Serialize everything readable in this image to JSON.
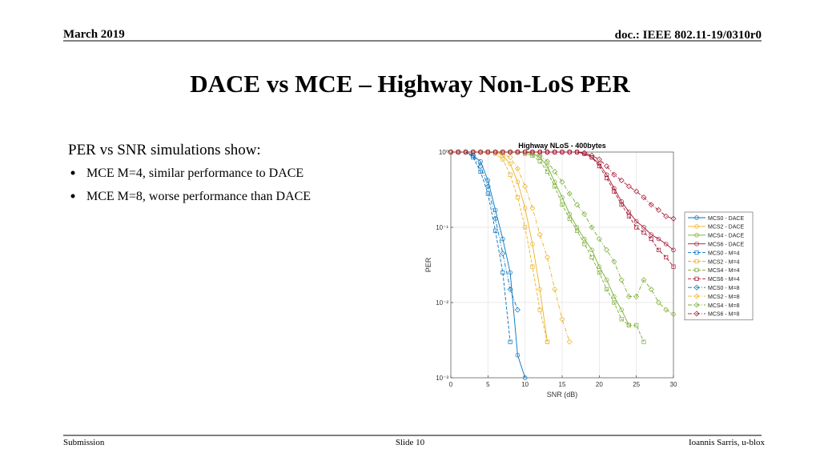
{
  "header": {
    "date": "March 2019",
    "doc": "doc.: IEEE 802.11-19/0310r0"
  },
  "title": "DACE vs MCE – Highway Non-LoS PER",
  "body": {
    "intro": "PER vs SNR simulations show:",
    "bullets": [
      "MCE M=4, similar performance to DACE",
      "MCE M=8, worse performance than DACE"
    ]
  },
  "chart_data": {
    "type": "line",
    "title": "Highway NLoS - 400bytes",
    "xlabel": "SNR (dB)",
    "ylabel": "PER",
    "x": [
      0,
      1,
      2,
      3,
      4,
      5,
      6,
      7,
      8,
      9,
      10,
      11,
      12,
      13,
      14,
      15,
      16,
      17,
      18,
      19,
      20,
      21,
      22,
      23,
      24,
      25,
      26,
      27,
      28,
      29,
      30
    ],
    "xlim": [
      0,
      30
    ],
    "xticks": [
      0,
      5,
      10,
      15,
      20,
      25,
      30
    ],
    "ylim": [
      0.001,
      1
    ],
    "yscale": "log",
    "yticks": [
      {
        "value": 0.001,
        "label": "10⁻³"
      },
      {
        "value": 0.01,
        "label": "10⁻²"
      },
      {
        "value": 0.1,
        "label": "10⁻¹"
      },
      {
        "value": 1,
        "label": "10⁰"
      }
    ],
    "grid": true,
    "legend": "right",
    "series": [
      {
        "name": "MCS0 - DACE",
        "color": "#0072bd",
        "dash": "solid",
        "marker": "circle",
        "values": [
          1,
          1,
          1,
          0.9,
          0.75,
          0.42,
          0.17,
          0.07,
          0.025,
          0.002,
          0.001,
          null,
          null,
          null,
          null,
          null,
          null,
          null,
          null,
          null,
          null,
          null,
          null,
          null,
          null,
          null,
          null,
          null,
          null,
          null,
          null
        ]
      },
      {
        "name": "MCS2 - DACE",
        "color": "#edb120",
        "dash": "solid",
        "marker": "circle",
        "values": [
          1,
          1,
          1,
          1,
          1,
          1,
          1,
          0.9,
          0.7,
          0.4,
          0.18,
          0.06,
          0.015,
          0.003,
          null,
          null,
          null,
          null,
          null,
          null,
          null,
          null,
          null,
          null,
          null,
          null,
          null,
          null,
          null,
          null,
          null
        ]
      },
      {
        "name": "MCS4 - DACE",
        "color": "#77ac30",
        "dash": "solid",
        "marker": "circle",
        "values": [
          1,
          1,
          1,
          1,
          1,
          1,
          1,
          1,
          1,
          1,
          1,
          0.95,
          0.85,
          0.65,
          0.4,
          0.25,
          0.15,
          0.1,
          0.07,
          0.05,
          0.03,
          0.02,
          0.012,
          0.008,
          0.005,
          null,
          null,
          null,
          null,
          null,
          null
        ]
      },
      {
        "name": "MCS6 - DACE",
        "color": "#a2142f",
        "dash": "solid",
        "marker": "circle",
        "values": [
          1,
          1,
          1,
          1,
          1,
          1,
          1,
          1,
          1,
          1,
          1,
          1,
          1,
          1,
          1,
          1,
          1,
          1,
          0.95,
          0.85,
          0.7,
          0.5,
          0.33,
          0.22,
          0.16,
          0.12,
          0.1,
          0.08,
          0.07,
          0.06,
          0.05
        ]
      },
      {
        "name": "MCS0 - M=4",
        "color": "#0072bd",
        "dash": "dashed",
        "marker": "square",
        "values": [
          1,
          1,
          1,
          0.85,
          0.55,
          0.28,
          0.09,
          0.025,
          0.003,
          null,
          null,
          null,
          null,
          null,
          null,
          null,
          null,
          null,
          null,
          null,
          null,
          null,
          null,
          null,
          null,
          null,
          null,
          null,
          null,
          null,
          null
        ]
      },
      {
        "name": "MCS2 - M=4",
        "color": "#edb120",
        "dash": "dashed",
        "marker": "square",
        "values": [
          1,
          1,
          1,
          1,
          1,
          1,
          0.95,
          0.8,
          0.5,
          0.25,
          0.1,
          0.03,
          0.008,
          0.003,
          null,
          null,
          null,
          null,
          null,
          null,
          null,
          null,
          null,
          null,
          null,
          null,
          null,
          null,
          null,
          null,
          null
        ]
      },
      {
        "name": "MCS4 - M=4",
        "color": "#77ac30",
        "dash": "dashed",
        "marker": "square",
        "values": [
          1,
          1,
          1,
          1,
          1,
          1,
          1,
          1,
          1,
          1,
          0.95,
          0.9,
          0.75,
          0.55,
          0.35,
          0.2,
          0.13,
          0.09,
          0.06,
          0.04,
          0.025,
          0.015,
          0.01,
          0.006,
          0.005,
          0.005,
          0.003,
          null,
          null,
          null,
          null
        ]
      },
      {
        "name": "MCS6 - M=4",
        "color": "#a2142f",
        "dash": "dashed",
        "marker": "square",
        "values": [
          1,
          1,
          1,
          1,
          1,
          1,
          1,
          1,
          1,
          1,
          1,
          1,
          1,
          1,
          1,
          1,
          1,
          1,
          0.95,
          0.85,
          0.65,
          0.45,
          0.3,
          0.2,
          0.14,
          0.1,
          0.085,
          0.07,
          0.05,
          0.04,
          0.03
        ]
      },
      {
        "name": "MCS0 - M=8",
        "color": "#0072bd",
        "dash": "dashdot",
        "marker": "diamond",
        "values": [
          1,
          1,
          1,
          0.9,
          0.65,
          0.35,
          0.13,
          0.045,
          0.015,
          0.008,
          null,
          null,
          null,
          null,
          null,
          null,
          null,
          null,
          null,
          null,
          null,
          null,
          null,
          null,
          null,
          null,
          null,
          null,
          null,
          null,
          null
        ]
      },
      {
        "name": "MCS2 - M=8",
        "color": "#edb120",
        "dash": "dashdot",
        "marker": "diamond",
        "values": [
          1,
          1,
          1,
          1,
          1,
          1,
          1,
          0.95,
          0.85,
          0.6,
          0.35,
          0.18,
          0.08,
          0.04,
          0.015,
          0.006,
          0.003,
          null,
          null,
          null,
          null,
          null,
          null,
          null,
          null,
          null,
          null,
          null,
          null,
          null,
          null
        ]
      },
      {
        "name": "MCS4 - M=8",
        "color": "#77ac30",
        "dash": "dashdot",
        "marker": "diamond",
        "values": [
          1,
          1,
          1,
          1,
          1,
          1,
          1,
          1,
          1,
          1,
          1,
          0.95,
          0.9,
          0.75,
          0.55,
          0.4,
          0.28,
          0.2,
          0.15,
          0.1,
          0.07,
          0.05,
          0.035,
          0.02,
          0.012,
          0.012,
          0.02,
          0.015,
          0.01,
          0.008,
          0.007
        ]
      },
      {
        "name": "MCS6 - M=8",
        "color": "#a2142f",
        "dash": "dashdot",
        "marker": "diamond",
        "values": [
          1,
          1,
          1,
          1,
          1,
          1,
          1,
          1,
          1,
          1,
          1,
          1,
          1,
          1,
          1,
          1,
          1,
          1,
          0.98,
          0.9,
          0.8,
          0.65,
          0.5,
          0.42,
          0.35,
          0.3,
          0.25,
          0.2,
          0.17,
          0.14,
          0.13
        ]
      }
    ]
  },
  "footer": {
    "left": "Submission",
    "center": "Slide 10",
    "right": "Ioannis Sarris, u-blox"
  }
}
